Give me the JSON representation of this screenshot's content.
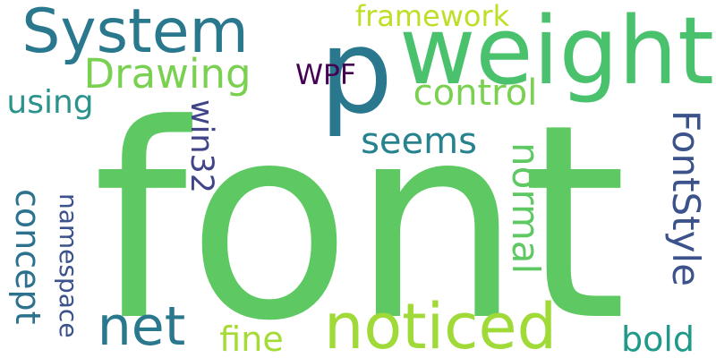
{
  "cloud": {
    "words": [
      {
        "text": "font",
        "color": "#5ec962"
      },
      {
        "text": "p",
        "color": "#2a788e"
      },
      {
        "text": "weight",
        "color": "#4ac16d"
      },
      {
        "text": "System",
        "color": "#2a788e"
      },
      {
        "text": "noticed",
        "color": "#a0da39"
      },
      {
        "text": "net",
        "color": "#2a788e"
      },
      {
        "text": "Drawing",
        "color": "#7ad151"
      },
      {
        "text": "WPF",
        "color": "#440154"
      },
      {
        "text": "framework",
        "color": "#bddf26"
      },
      {
        "text": "control",
        "color": "#7ad151"
      },
      {
        "text": "seems",
        "color": "#26828e"
      },
      {
        "text": "using",
        "color": "#2c928c"
      },
      {
        "text": "win32",
        "color": "#414487"
      },
      {
        "text": "concept",
        "color": "#2c728e"
      },
      {
        "text": "namespace",
        "color": "#3b528b"
      },
      {
        "text": "normal",
        "color": "#5ec962"
      },
      {
        "text": "FontStyle",
        "color": "#3b528b"
      },
      {
        "text": "fine",
        "color": "#a5db36"
      },
      {
        "text": "bold",
        "color": "#1f9a8a"
      }
    ]
  }
}
